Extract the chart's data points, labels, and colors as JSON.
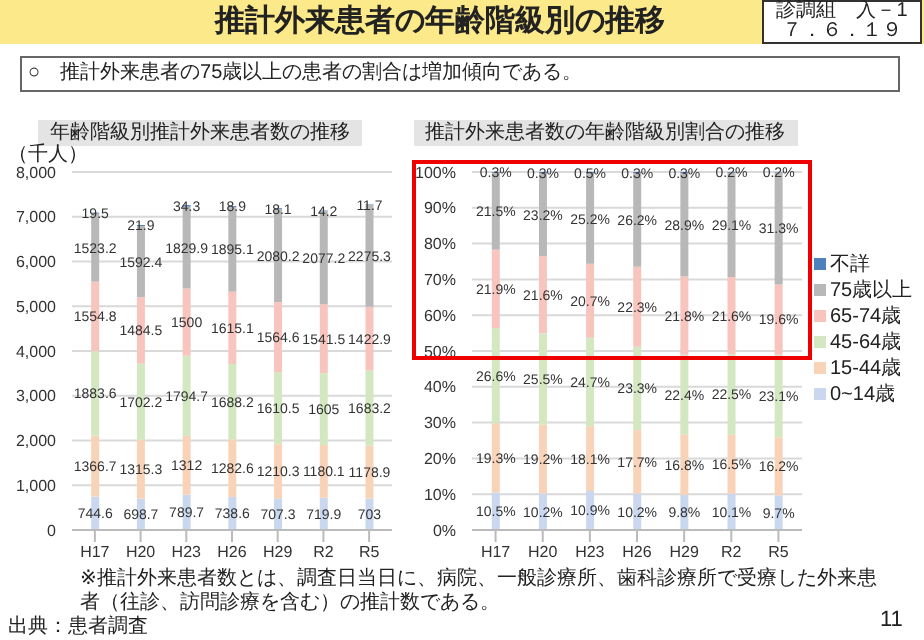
{
  "chart_data": [
    {
      "type": "bar",
      "title": "年齢階級別推計外来患者数の推移",
      "ylabel": "（千人）",
      "stacked": true,
      "data_labels": true,
      "grid": "y",
      "legend": false,
      "annotations": [
        "推計外来患者の年齢階級別の推移",
        "診調組　入－1",
        "７．６．１９",
        "○　推計外来患者の75歳以上の患者の割合は増加傾向である。",
        "※推計外来患者数とは、調査日当日に、病院、一般診療所、歯科診療所で受療した外来患者（往診、訪問診療を含む）の推計数である。",
        "出典：患者調査",
        "11"
      ],
      "categories": [
        "H17",
        "H20",
        "H23",
        "H26",
        "H29",
        "R2",
        "R5"
      ],
      "ylim": [
        0,
        8000
      ],
      "yticks": [
        {
          "value": 0,
          "label": "0"
        },
        {
          "value": 1000,
          "label": "1,000"
        },
        {
          "value": 2000,
          "label": "2,000"
        },
        {
          "value": 3000,
          "label": "3,000"
        },
        {
          "value": 4000,
          "label": "4,000"
        },
        {
          "value": 5000,
          "label": "5,000"
        },
        {
          "value": 6000,
          "label": "6,000"
        },
        {
          "value": 7000,
          "label": "7,000"
        },
        {
          "value": 8000,
          "label": "8,000"
        }
      ],
      "series": [
        {
          "color": "#c9d7ef",
          "values": [
            744.6,
            698.7,
            789.7,
            738.6,
            707.3,
            719.9,
            703
          ]
        },
        {
          "color": "#f9d3b8",
          "values": [
            1366.7,
            1315.3,
            1312,
            1282.6,
            1210.3,
            1180.1,
            1178.9
          ]
        },
        {
          "color": "#d3e8c0",
          "values": [
            1883.6,
            1702.2,
            1794.7,
            1688.2,
            1610.5,
            1605,
            1683.2
          ]
        },
        {
          "color": "#f7c4be",
          "values": [
            1554.8,
            1484.5,
            1500,
            1615.1,
            1564.6,
            1541.5,
            1422.9
          ]
        },
        {
          "color": "#b8b8b8",
          "values": [
            1523.2,
            1592.4,
            1829.9,
            1895.1,
            2080.2,
            2077.2,
            2275.3
          ]
        },
        {
          "color": "#4f81bd",
          "values": [
            19.5,
            21.9,
            34.3,
            18.9,
            18.1,
            14.2,
            11.7
          ]
        }
      ]
    },
    {
      "type": "bar",
      "title": "推計外来患者数の年齢階級別割合の推移",
      "stacked": true,
      "grid": "y",
      "legend": "right",
      "categories": [
        "H17",
        "H20",
        "H23",
        "H26",
        "H29",
        "R2",
        "R5"
      ],
      "ylim": [
        0,
        100
      ],
      "yticks": [
        {
          "value": 0,
          "label": "0%"
        },
        {
          "value": 10,
          "label": "10%"
        },
        {
          "value": 20,
          "label": "20%"
        },
        {
          "value": 30,
          "label": "30%"
        },
        {
          "value": 40,
          "label": "40%"
        },
        {
          "value": 50,
          "label": "50%"
        },
        {
          "value": 60,
          "label": "60%"
        },
        {
          "value": 70,
          "label": "70%"
        },
        {
          "value": 80,
          "label": "80%"
        },
        {
          "value": 90,
          "label": "90%"
        },
        {
          "value": 100,
          "label": "100%"
        }
      ],
      "series": [
        {
          "name": "0~14歳",
          "color": "#c9d7ef",
          "values": [
            10.5,
            10.2,
            10.9,
            10.2,
            9.8,
            10.1,
            9.7
          ],
          "value_labels": [
            "10.5%",
            "10.2%",
            "10.9%",
            "10.2%",
            "9.8%",
            "10.1%",
            "9.7%"
          ]
        },
        {
          "name": "15-44歳",
          "color": "#f9d3b8",
          "values": [
            19.3,
            19.2,
            18.1,
            17.7,
            16.8,
            16.5,
            16.2
          ],
          "value_labels": [
            "19.3%",
            "19.2%",
            "18.1%",
            "17.7%",
            "16.8%",
            "16.5%",
            "16.2%"
          ]
        },
        {
          "name": "45-64歳",
          "color": "#d3e8c0",
          "values": [
            26.6,
            25.5,
            24.7,
            23.3,
            22.4,
            22.5,
            23.1
          ],
          "value_labels": [
            "26.6%",
            "25.5%",
            "24.7%",
            "23.3%",
            "22.4%",
            "22.5%",
            "23.1%"
          ]
        },
        {
          "name": "65-74歳",
          "color": "#f7c4be",
          "values": [
            21.9,
            21.6,
            20.7,
            22.3,
            21.8,
            21.6,
            19.6
          ],
          "value_labels": [
            "21.9%",
            "21.6%",
            "20.7%",
            "22.3%",
            "21.8%",
            "21.6%",
            "19.6%"
          ]
        },
        {
          "name": "75歳以上",
          "color": "#b8b8b8",
          "values": [
            21.5,
            23.2,
            25.2,
            26.2,
            28.9,
            29.1,
            31.3
          ],
          "value_labels": [
            "21.5%",
            "23.2%",
            "25.2%",
            "26.2%",
            "28.9%",
            "29.1%",
            "31.3%"
          ]
        },
        {
          "name": "不詳",
          "color": "#4f81bd",
          "values": [
            0.3,
            0.3,
            0.5,
            0.3,
            0.3,
            0.2,
            0.2
          ],
          "value_labels": [
            "0.3%",
            "0.3%",
            "0.5%",
            "0.3%",
            "0.3%",
            "0.2%",
            "0.2%"
          ]
        }
      ]
    }
  ]
}
